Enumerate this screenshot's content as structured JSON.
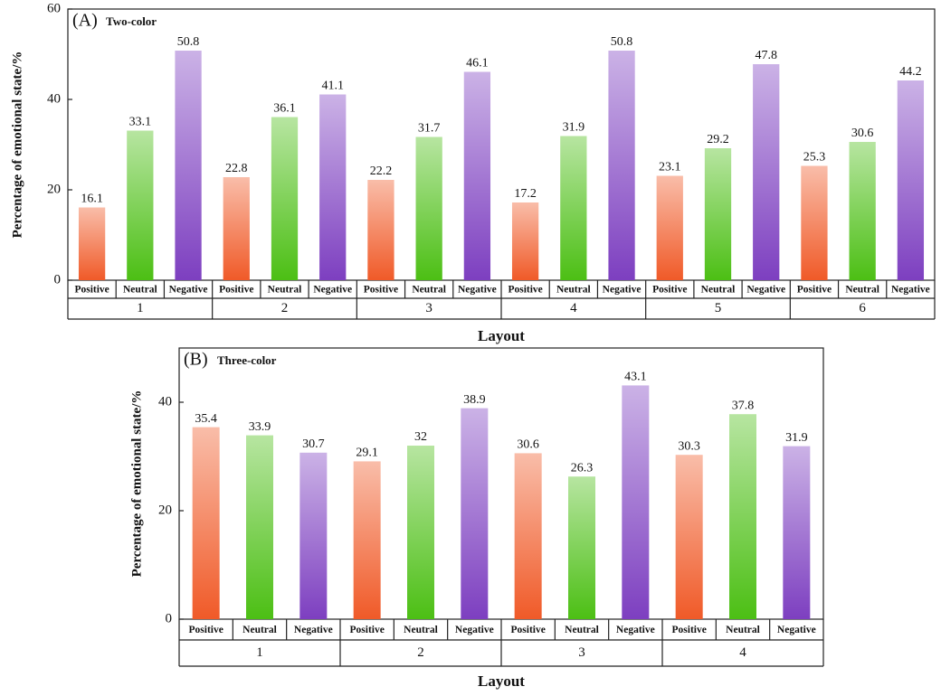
{
  "chart_data": [
    {
      "type": "bar",
      "panel": "(A)",
      "title": "Two-color",
      "y_label": "Percentage of emotional state/%",
      "x_label": "Layout",
      "categories": [
        "1",
        "2",
        "3",
        "4",
        "5",
        "6"
      ],
      "series": [
        {
          "name": "Positive",
          "color": "#f05a28",
          "values": [
            16.1,
            22.8,
            22.2,
            17.2,
            23.1,
            25.3
          ]
        },
        {
          "name": "Neutral",
          "color": "#4cbf14",
          "values": [
            33.1,
            36.1,
            31.7,
            31.9,
            29.2,
            30.6
          ]
        },
        {
          "name": "Negative",
          "color": "#7d3fc0",
          "values": [
            50.8,
            41.1,
            46.1,
            50.8,
            47.8,
            44.2
          ]
        }
      ],
      "ylim": [
        0,
        60
      ],
      "yticks": [
        0,
        20,
        40,
        60
      ]
    },
    {
      "type": "bar",
      "panel": "(B)",
      "title": "Three-color",
      "y_label": "Percentage of emotional state/%",
      "x_label": "Layout",
      "categories": [
        "1",
        "2",
        "3",
        "4"
      ],
      "series": [
        {
          "name": "Positive",
          "color": "#f05a28",
          "values": [
            35.4,
            29.1,
            30.6,
            30.3
          ]
        },
        {
          "name": "Neutral",
          "color": "#4cbf14",
          "values": [
            33.9,
            32,
            26.3,
            37.8
          ]
        },
        {
          "name": "Negative",
          "color": "#7d3fc0",
          "values": [
            30.7,
            38.9,
            43.1,
            31.9
          ]
        }
      ],
      "ylim": [
        0,
        50
      ],
      "yticks": [
        0,
        20,
        40
      ]
    }
  ]
}
